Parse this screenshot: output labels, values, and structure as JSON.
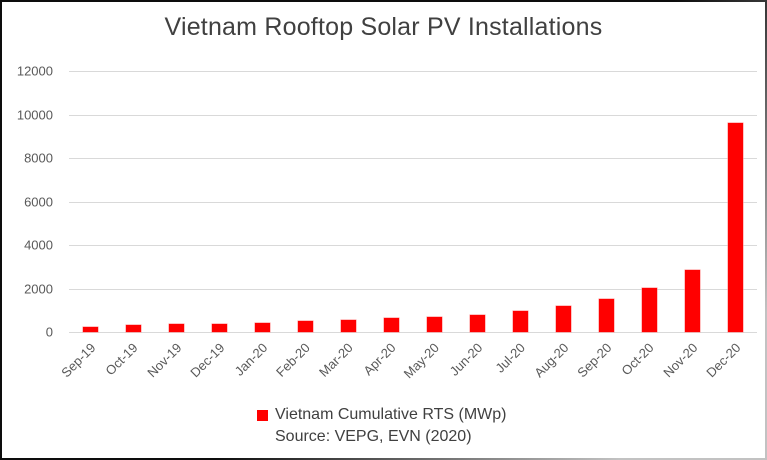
{
  "title": "Vietnam Rooftop Solar PV Installations",
  "legend": {
    "label": "Vietnam Cumulative RTS (MWp)",
    "swatch_color": "#ff0000"
  },
  "source": "Source: VEPG, EVN (2020)",
  "colors": {
    "bar": "#ff0000",
    "gridline": "#d9d9d9",
    "title_text": "#404040",
    "axis_text": "#595959",
    "background": "#ffffff"
  },
  "chart_data": {
    "type": "bar",
    "title": "Vietnam Rooftop Solar PV Installations",
    "categories": [
      "Sep-19",
      "Oct-19",
      "Nov-19",
      "Dec-19",
      "Jan-20",
      "Feb-20",
      "Mar-20",
      "Apr-20",
      "May-20",
      "Jun-20",
      "Jul-20",
      "Aug-20",
      "Sep-20",
      "Oct-20",
      "Nov-20",
      "Dec-20"
    ],
    "series": [
      {
        "name": "Vietnam Cumulative RTS (MWp)",
        "color": "#ff0000",
        "values": [
          240,
          300,
          350,
          380,
          430,
          490,
          560,
          630,
          670,
          770,
          980,
          1180,
          1510,
          2020,
          2870,
          9600
        ]
      }
    ],
    "xlabel": "",
    "ylabel": "",
    "ylim": [
      0,
      12000
    ],
    "yticks": [
      0,
      2000,
      4000,
      6000,
      8000,
      10000,
      12000
    ],
    "grid": true,
    "legend_position": "bottom",
    "annotations": [
      "Source: VEPG, EVN (2020)"
    ]
  }
}
